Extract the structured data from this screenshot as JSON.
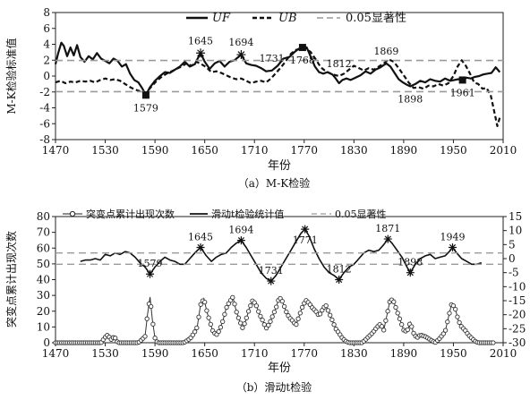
{
  "chart_data": [
    {
      "type": "line",
      "caption": "（a）M-K检验",
      "xlabel": "年份",
      "ylabel": "M-K检验标准值",
      "xlim": [
        1470,
        2010
      ],
      "ylim": [
        -8,
        8
      ],
      "x_ticks": [
        1470,
        1530,
        1590,
        1650,
        1710,
        1770,
        1830,
        1890,
        1950,
        2010
      ],
      "y_ticks": [
        -8,
        -6,
        -4,
        -2,
        0,
        2,
        4,
        6,
        8
      ],
      "legend": {
        "position": "top",
        "items": [
          "UF",
          "UB",
          "0.05显著性"
        ]
      },
      "series": [
        {
          "name": "UF",
          "style": "solid-bold",
          "x": [
            1470,
            1473,
            1477,
            1480,
            1484,
            1488,
            1492,
            1496,
            1500,
            1505,
            1510,
            1515,
            1520,
            1525,
            1530,
            1535,
            1540,
            1545,
            1550,
            1555,
            1560,
            1565,
            1570,
            1575,
            1579,
            1584,
            1590,
            1596,
            1602,
            1608,
            1614,
            1620,
            1626,
            1632,
            1638,
            1645,
            1650,
            1656,
            1662,
            1668,
            1674,
            1680,
            1686,
            1694,
            1700,
            1706,
            1712,
            1718,
            1724,
            1731,
            1738,
            1745,
            1752,
            1758,
            1763,
            1768,
            1773,
            1778,
            1783,
            1788,
            1793,
            1798,
            1804,
            1808,
            1812,
            1816,
            1821,
            1826,
            1832,
            1838,
            1844,
            1850,
            1856,
            1862,
            1869,
            1874,
            1879,
            1884,
            1889,
            1894,
            1898,
            1904,
            1910,
            1916,
            1922,
            1928,
            1934,
            1940,
            1946,
            1951,
            1956,
            1961,
            1966,
            1971,
            1976,
            1981,
            1986,
            1991,
            1996,
            2001,
            2006
          ],
          "values": [
            1.5,
            2.8,
            4.2,
            3.8,
            2.5,
            3.6,
            2.6,
            3.9,
            2.4,
            1.8,
            2.5,
            2.1,
            2.9,
            2.2,
            1.9,
            1.6,
            2.2,
            1.9,
            1.2,
            1.5,
            0.3,
            -0.5,
            -0.8,
            -1.6,
            -2.4,
            -1.4,
            -0.6,
            0.0,
            0.5,
            0.4,
            0.8,
            1.2,
            1.8,
            1.2,
            1.5,
            2.9,
            1.8,
            0.9,
            1.6,
            1.9,
            1.2,
            1.8,
            2.0,
            2.7,
            1.6,
            1.4,
            1.3,
            1.0,
            0.6,
            0.7,
            1.3,
            2.2,
            2.4,
            3.0,
            3.4,
            3.7,
            3.6,
            2.4,
            1.2,
            0.5,
            0.3,
            0.5,
            0.2,
            -0.3,
            -0.9,
            -0.5,
            -0.3,
            -0.5,
            -0.2,
            0.1,
            0.6,
            0.3,
            0.8,
            1.1,
            1.6,
            1.2,
            0.4,
            -0.4,
            -0.8,
            -1.1,
            -1.3,
            -1.0,
            -0.6,
            -0.8,
            -0.4,
            -0.6,
            -0.7,
            -0.3,
            -0.6,
            -0.5,
            -0.4,
            -0.5,
            -0.2,
            -0.3,
            -0.1,
            0.0,
            0.2,
            0.3,
            0.4,
            1.1,
            0.5
          ]
        },
        {
          "name": "UB",
          "style": "dashed-bold",
          "x": [
            1470,
            1476,
            1482,
            1488,
            1494,
            1500,
            1506,
            1512,
            1518,
            1524,
            1530,
            1536,
            1542,
            1548,
            1554,
            1560,
            1566,
            1572,
            1579,
            1586,
            1592,
            1598,
            1604,
            1610,
            1616,
            1622,
            1628,
            1634,
            1640,
            1646,
            1652,
            1658,
            1664,
            1670,
            1676,
            1682,
            1688,
            1694,
            1700,
            1706,
            1712,
            1718,
            1724,
            1730,
            1736,
            1742,
            1748,
            1754,
            1760,
            1766,
            1772,
            1778,
            1784,
            1790,
            1796,
            1802,
            1808,
            1812,
            1818,
            1824,
            1830,
            1836,
            1842,
            1848,
            1854,
            1860,
            1866,
            1872,
            1878,
            1884,
            1890,
            1896,
            1902,
            1908,
            1914,
            1920,
            1926,
            1932,
            1938,
            1944,
            1950,
            1955,
            1960,
            1965,
            1970,
            1975,
            1980,
            1985,
            1990,
            1995,
            2000,
            2003,
            2006
          ],
          "values": [
            -0.8,
            -0.6,
            -0.9,
            -0.7,
            -0.8,
            -0.6,
            -0.7,
            -0.6,
            -0.8,
            -0.5,
            -0.3,
            -0.5,
            -0.4,
            -0.6,
            -1.0,
            -1.4,
            -1.7,
            -1.9,
            -2.1,
            -1.3,
            -0.6,
            -0.1,
            0.3,
            0.6,
            0.9,
            1.2,
            1.6,
            1.3,
            1.8,
            1.5,
            1.1,
            0.5,
            0.6,
            0.4,
            0.1,
            -0.2,
            -0.4,
            -0.3,
            -0.6,
            -0.9,
            -0.7,
            -0.6,
            -0.8,
            -0.3,
            0.4,
            1.1,
            1.9,
            2.8,
            3.3,
            3.4,
            3.5,
            3.0,
            2.1,
            1.1,
            0.6,
            0.3,
            0.1,
            0.0,
            0.3,
            0.8,
            1.3,
            1.0,
            0.7,
            1.0,
            0.8,
            1.2,
            1.6,
            2.1,
            1.8,
            1.0,
            0.1,
            -0.8,
            -1.5,
            -1.4,
            -1.6,
            -1.2,
            -1.3,
            -1.0,
            -1.2,
            -0.9,
            0.0,
            1.2,
            2.0,
            1.3,
            0.3,
            -0.8,
            -1.0,
            -1.6,
            -1.5,
            -2.4,
            -4.8,
            -6.3,
            -5.2
          ]
        },
        {
          "name": "0.05显著性",
          "style": "dashed-gray",
          "hlines": [
            1.96,
            -1.96
          ]
        }
      ],
      "point_labels": [
        {
          "label": "1579",
          "x": 1579,
          "y": -2.4,
          "side": "below"
        },
        {
          "label": "1645",
          "x": 1645,
          "y": 2.9,
          "side": "above"
        },
        {
          "label": "1694",
          "x": 1694,
          "y": 2.7,
          "side": "above"
        },
        {
          "label": "1731",
          "x": 1731,
          "y": 0.7,
          "side": "above"
        },
        {
          "label": "1768",
          "x": 1768,
          "y": 3.6,
          "side": "below"
        },
        {
          "label": "1812",
          "x": 1812,
          "y": 0.0,
          "side": "above"
        },
        {
          "label": "1869",
          "x": 1869,
          "y": 1.6,
          "side": "above"
        },
        {
          "label": "1898",
          "x": 1898,
          "y": -1.3,
          "side": "below"
        },
        {
          "label": "1961",
          "x": 1961,
          "y": -0.5,
          "side": "below"
        }
      ]
    },
    {
      "type": "line",
      "caption": "（b）滑动t检验",
      "xlabel": "年份",
      "ylabel": "突变点累计出现次数",
      "y2label": "滑动t检验统计值",
      "xlim": [
        1470,
        2010
      ],
      "ylim": [
        0,
        80
      ],
      "y2lim": [
        -30,
        15
      ],
      "x_ticks": [
        1470,
        1530,
        1590,
        1650,
        1710,
        1770,
        1830,
        1890,
        1950,
        2010
      ],
      "y_ticks": [
        0,
        10,
        20,
        30,
        40,
        50,
        60,
        70,
        80
      ],
      "y2_ticks": [
        -30,
        -25,
        -20,
        -15,
        -10,
        -5,
        0,
        5,
        10,
        15
      ],
      "legend": {
        "position": "top",
        "items": [
          "突变点累计出现次数",
          "滑动t检验统计值",
          "0.05显著性"
        ]
      },
      "series": [
        {
          "name": "突变点累计出现次数",
          "style": "line-circles",
          "axis": "left",
          "x": [
            1470,
            1490,
            1510,
            1525,
            1529,
            1533,
            1537,
            1541,
            1545,
            1550,
            1560,
            1570,
            1578,
            1581,
            1584,
            1587,
            1590,
            1593,
            1597,
            1610,
            1625,
            1633,
            1637,
            1641,
            1645,
            1649,
            1653,
            1657,
            1660,
            1664,
            1668,
            1672,
            1676,
            1680,
            1684,
            1688,
            1692,
            1696,
            1700,
            1704,
            1708,
            1712,
            1716,
            1720,
            1724,
            1728,
            1732,
            1736,
            1740,
            1744,
            1748,
            1752,
            1756,
            1760,
            1764,
            1768,
            1772,
            1776,
            1780,
            1784,
            1788,
            1792,
            1796,
            1800,
            1804,
            1808,
            1812,
            1816,
            1820,
            1824,
            1828,
            1832,
            1836,
            1840,
            1846,
            1852,
            1858,
            1862,
            1866,
            1870,
            1874,
            1878,
            1882,
            1886,
            1890,
            1894,
            1898,
            1902,
            1906,
            1910,
            1916,
            1922,
            1928,
            1934,
            1940,
            1944,
            1948,
            1952,
            1956,
            1960,
            1964,
            1968,
            1972,
            1976,
            1980,
            1990,
            2000
          ],
          "values": [
            0,
            0,
            0,
            0,
            3,
            5,
            2,
            4,
            0,
            0,
            0,
            0,
            4,
            18,
            29,
            14,
            3,
            0,
            0,
            0,
            0,
            3,
            6,
            10,
            24,
            28,
            19,
            12,
            7,
            5,
            8,
            14,
            22,
            26,
            29,
            20,
            14,
            9,
            15,
            22,
            27,
            24,
            18,
            14,
            9,
            12,
            17,
            22,
            29,
            26,
            20,
            16,
            14,
            11,
            17,
            23,
            27,
            25,
            22,
            20,
            17,
            21,
            24,
            19,
            14,
            9,
            6,
            3,
            1,
            0,
            0,
            0,
            0,
            0,
            3,
            6,
            10,
            12,
            8,
            18,
            28,
            26,
            20,
            14,
            8,
            7,
            13,
            6,
            3,
            5,
            4,
            2,
            0,
            3,
            7,
            16,
            25,
            22,
            14,
            10,
            8,
            5,
            3,
            1,
            0,
            0,
            0
          ]
        },
        {
          "name": "滑动t检验统计值",
          "style": "solid",
          "axis": "right",
          "x": [
            1500,
            1506,
            1512,
            1518,
            1524,
            1530,
            1536,
            1542,
            1548,
            1554,
            1560,
            1566,
            1572,
            1578,
            1584,
            1590,
            1596,
            1602,
            1608,
            1614,
            1620,
            1626,
            1632,
            1638,
            1645,
            1652,
            1658,
            1664,
            1670,
            1676,
            1682,
            1688,
            1694,
            1700,
            1706,
            1712,
            1718,
            1724,
            1730,
            1736,
            1742,
            1748,
            1754,
            1760,
            1766,
            1771,
            1776,
            1782,
            1788,
            1794,
            1800,
            1806,
            1812,
            1818,
            1824,
            1830,
            1836,
            1842,
            1848,
            1854,
            1860,
            1866,
            1871,
            1876,
            1882,
            1888,
            1894,
            1898,
            1904,
            1910,
            1916,
            1922,
            1928,
            1934,
            1940,
            1945,
            1949,
            1954,
            1960,
            1966,
            1972,
            1978,
            1984
          ],
          "values": [
            -1,
            -0.5,
            -0.5,
            0,
            -0.5,
            1.5,
            1,
            2,
            1.5,
            2.5,
            2,
            0.5,
            -1.5,
            -3,
            -5.5,
            -3,
            -1,
            0.5,
            -0.5,
            -1,
            -2,
            -2,
            0,
            2,
            4,
            1,
            -1,
            0.5,
            1.5,
            2,
            4,
            5.5,
            6.5,
            4,
            1,
            -2,
            -5,
            -7,
            -8,
            -6,
            -3,
            0,
            3,
            6,
            9,
            10.5,
            8,
            3.5,
            0,
            -3,
            -5,
            -6,
            -7.5,
            -5,
            -3,
            -2,
            0,
            2,
            3,
            2.5,
            3,
            5,
            7,
            5.5,
            3,
            0.5,
            -3,
            -5,
            -2,
            0,
            1,
            1.5,
            0,
            0.5,
            1,
            2.5,
            4,
            2,
            0,
            -1,
            -2,
            -2,
            -1.5
          ]
        },
        {
          "name": "0.05显著性",
          "style": "dashed-gray",
          "axis": "right",
          "hlines": [
            2.0,
            -2.0
          ]
        }
      ],
      "point_labels": [
        {
          "label": "1579",
          "x": 1584,
          "y": -5.5,
          "side": "above"
        },
        {
          "label": "1645",
          "x": 1645,
          "y": 4,
          "side": "above"
        },
        {
          "label": "1694",
          "x": 1694,
          "y": 6.5,
          "side": "above"
        },
        {
          "label": "1731",
          "x": 1730,
          "y": -8,
          "side": "above"
        },
        {
          "label": "1771",
          "x": 1771,
          "y": 10.5,
          "side": "below"
        },
        {
          "label": "1812",
          "x": 1812,
          "y": -7.5,
          "side": "above"
        },
        {
          "label": "1871",
          "x": 1871,
          "y": 7,
          "side": "above"
        },
        {
          "label": "1898",
          "x": 1898,
          "y": -5,
          "side": "above"
        },
        {
          "label": "1949",
          "x": 1949,
          "y": 4,
          "side": "above"
        }
      ]
    }
  ]
}
